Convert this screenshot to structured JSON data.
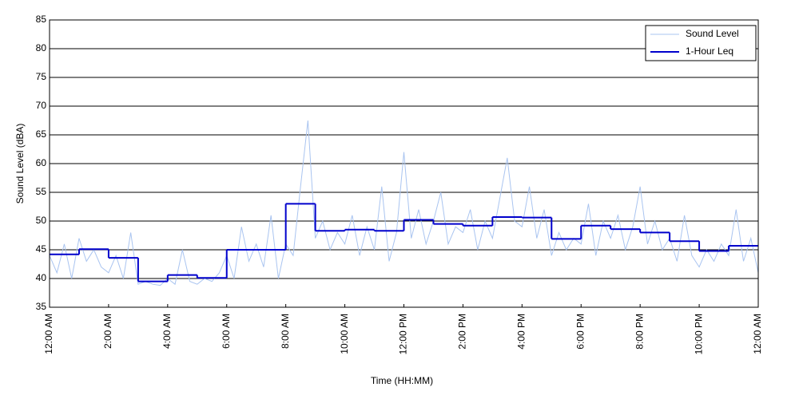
{
  "chart_data": {
    "type": "line",
    "xlabel": "Time (HH:MM)",
    "ylabel": "Sound Level (dBA)",
    "xlim": [
      0,
      24
    ],
    "xticks": [
      {
        "value": 0,
        "label": "12:00 AM"
      },
      {
        "value": 2,
        "label": "2:00 AM"
      },
      {
        "value": 4,
        "label": "4:00 AM"
      },
      {
        "value": 6,
        "label": "6:00 AM"
      },
      {
        "value": 8,
        "label": "8:00 AM"
      },
      {
        "value": 10,
        "label": "10:00 AM"
      },
      {
        "value": 12,
        "label": "12:00 PM"
      },
      {
        "value": 14,
        "label": "2:00 PM"
      },
      {
        "value": 16,
        "label": "4:00 PM"
      },
      {
        "value": 18,
        "label": "6:00 PM"
      },
      {
        "value": 20,
        "label": "8:00 PM"
      },
      {
        "value": 22,
        "label": "10:00 PM"
      },
      {
        "value": 24,
        "label": "12:00 AM"
      }
    ],
    "ylim": [
      35,
      85
    ],
    "yticks": [
      35,
      40,
      45,
      50,
      55,
      60,
      65,
      70,
      75,
      80,
      85
    ],
    "grid": true,
    "legend": "upper right",
    "series": [
      {
        "name": "Sound Level",
        "color": "#a9c4f0",
        "x": [
          0,
          0.25,
          0.5,
          0.75,
          1,
          1.25,
          1.5,
          1.75,
          2,
          2.25,
          2.5,
          2.75,
          3,
          3.25,
          3.5,
          3.75,
          4,
          4.25,
          4.5,
          4.75,
          5,
          5.25,
          5.5,
          5.75,
          6,
          6.25,
          6.5,
          6.75,
          7,
          7.25,
          7.5,
          7.75,
          8,
          8.25,
          8.5,
          8.75,
          9,
          9.25,
          9.5,
          9.75,
          10,
          10.25,
          10.5,
          10.75,
          11,
          11.25,
          11.5,
          11.75,
          12,
          12.25,
          12.5,
          12.75,
          13,
          13.25,
          13.5,
          13.75,
          14,
          14.25,
          14.5,
          14.75,
          15,
          15.25,
          15.5,
          15.75,
          16,
          16.25,
          16.5,
          16.75,
          17,
          17.25,
          17.5,
          17.75,
          18,
          18.25,
          18.5,
          18.75,
          19,
          19.25,
          19.5,
          19.75,
          20,
          20.25,
          20.5,
          20.75,
          21,
          21.25,
          21.5,
          21.75,
          22,
          22.25,
          22.5,
          22.75,
          23,
          23.25,
          23.5,
          23.75,
          24
        ],
        "values": [
          44,
          41,
          46,
          40,
          47,
          43,
          45,
          42,
          41,
          44,
          40,
          48,
          39,
          39.5,
          39,
          38.8,
          40,
          39,
          45,
          39.5,
          39,
          40,
          39.5,
          41,
          44,
          40,
          49,
          43,
          46,
          42,
          51,
          40,
          46,
          44,
          56,
          67.5,
          47,
          50,
          45,
          48,
          46,
          51,
          44,
          49,
          45,
          56,
          43,
          48,
          62,
          47,
          52,
          46,
          50,
          55,
          46,
          49,
          48,
          52,
          45,
          50,
          47,
          54,
          61,
          50,
          49,
          56,
          47,
          52,
          44,
          48,
          45,
          47,
          46,
          53,
          44,
          50,
          47,
          51,
          45,
          49,
          56,
          46,
          50,
          45,
          47,
          43,
          51,
          44,
          42,
          45,
          43,
          46,
          44,
          52,
          43,
          47,
          41
        ]
      },
      {
        "name": "1-Hour Leq",
        "color": "#0000cc",
        "step": true,
        "x": [
          0,
          1,
          2,
          3,
          4,
          5,
          6,
          7,
          8,
          9,
          10,
          11,
          12,
          13,
          14,
          15,
          16,
          17,
          18,
          19,
          20,
          21,
          22,
          23
        ],
        "values": [
          44.2,
          45.1,
          43.6,
          39.5,
          40.6,
          40.1,
          45.0,
          45.0,
          53.0,
          48.3,
          48.5,
          48.3,
          50.2,
          49.5,
          49.2,
          50.7,
          50.6,
          46.9,
          49.2,
          48.6,
          48.0,
          46.5,
          44.8,
          45.7
        ]
      }
    ]
  }
}
